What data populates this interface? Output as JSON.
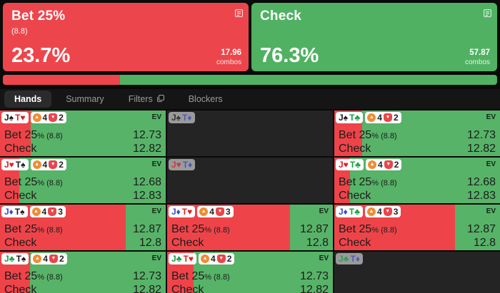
{
  "strategy_cards": [
    {
      "label": "Bet 25%",
      "sublabel": "(8.8)",
      "frequency": "23.7%",
      "combos": "17.96",
      "combos_label": "combos"
    },
    {
      "label": "Check",
      "sublabel": "",
      "frequency": "76.3%",
      "combos": "57.87",
      "combos_label": "combos"
    }
  ],
  "frequency_bar": {
    "bet_pct": 23.7,
    "check_pct": 76.3
  },
  "tabs": {
    "items": [
      {
        "label": "Hands",
        "active": true
      },
      {
        "label": "Summary",
        "active": false
      },
      {
        "label": "Filters",
        "active": false,
        "icon": "copy-icon"
      },
      {
        "label": "Blockers",
        "active": false
      }
    ]
  },
  "colors": {
    "bet_red": "#ec464c",
    "check_green": "#50b162",
    "cell_green": "#57b368",
    "cell_red": "#ee4449",
    "empty_cell": "#242424",
    "shield_orange": "#ef8d35",
    "shield_red": "#e9454b",
    "suit_spade": "#1a1a1a",
    "suit_heart": "#d8232b",
    "suit_diamond": "#3b4bc8",
    "suit_club": "#1b9e45"
  },
  "grid": {
    "ev_header": "EV",
    "cells": [
      {
        "cards": [
          {
            "rank": "J",
            "suit": "spade"
          },
          {
            "rank": "T",
            "suit": "heart"
          }
        ],
        "shields": [
          {
            "color": "orange",
            "value": "4"
          },
          {
            "color": "red",
            "value": "2"
          }
        ],
        "actions": [
          {
            "name": "Bet 25",
            "suffix": "% (8.8)",
            "ev": "12.73"
          },
          {
            "name": "Check",
            "suffix": "",
            "ev": "12.82"
          }
        ],
        "bet_freq_pct": 18.5,
        "empty": false
      },
      {
        "cards": [
          {
            "rank": "J",
            "suit": "spade"
          },
          {
            "rank": "T",
            "suit": "diamond"
          }
        ],
        "shields": [],
        "actions": [],
        "bet_freq_pct": 0,
        "empty": true
      },
      {
        "cards": [
          {
            "rank": "J",
            "suit": "spade"
          },
          {
            "rank": "T",
            "suit": "club"
          }
        ],
        "shields": [
          {
            "color": "orange",
            "value": "4"
          },
          {
            "color": "red",
            "value": "2"
          }
        ],
        "actions": [
          {
            "name": "Bet 25",
            "suffix": "% (8.8)",
            "ev": "12.73"
          },
          {
            "name": "Check",
            "suffix": "",
            "ev": "12.82"
          }
        ],
        "bet_freq_pct": 17,
        "empty": false
      },
      {
        "cards": [
          {
            "rank": "J",
            "suit": "heart"
          },
          {
            "rank": "T",
            "suit": "spade"
          }
        ],
        "shields": [
          {
            "color": "orange",
            "value": "4"
          },
          {
            "color": "red",
            "value": "2"
          }
        ],
        "actions": [
          {
            "name": "Bet 25",
            "suffix": "% (8.8)",
            "ev": "12.68"
          },
          {
            "name": "Check",
            "suffix": "",
            "ev": "12.83"
          }
        ],
        "bet_freq_pct": 11.5,
        "empty": false
      },
      {
        "cards": [
          {
            "rank": "J",
            "suit": "heart"
          },
          {
            "rank": "T",
            "suit": "diamond"
          }
        ],
        "shields": [],
        "actions": [],
        "bet_freq_pct": 0,
        "empty": true
      },
      {
        "cards": [
          {
            "rank": "J",
            "suit": "heart"
          },
          {
            "rank": "T",
            "suit": "club"
          }
        ],
        "shields": [
          {
            "color": "orange",
            "value": "4"
          },
          {
            "color": "red",
            "value": "2"
          }
        ],
        "actions": [
          {
            "name": "Bet 25",
            "suffix": "% (8.8)",
            "ev": "12.68"
          },
          {
            "name": "Check",
            "suffix": "",
            "ev": "12.83"
          }
        ],
        "bet_freq_pct": 9.5,
        "empty": false
      },
      {
        "cards": [
          {
            "rank": "J",
            "suit": "diamond"
          },
          {
            "rank": "T",
            "suit": "spade"
          }
        ],
        "shields": [
          {
            "color": "orange",
            "value": "4"
          },
          {
            "color": "red",
            "value": "3"
          }
        ],
        "actions": [
          {
            "name": "Bet 25",
            "suffix": "% (8.8)",
            "ev": "12.87"
          },
          {
            "name": "Check",
            "suffix": "",
            "ev": "12.8"
          }
        ],
        "bet_freq_pct": 76,
        "empty": false
      },
      {
        "cards": [
          {
            "rank": "J",
            "suit": "diamond"
          },
          {
            "rank": "T",
            "suit": "heart"
          }
        ],
        "shields": [
          {
            "color": "orange",
            "value": "4"
          },
          {
            "color": "red",
            "value": "3"
          }
        ],
        "actions": [
          {
            "name": "Bet 25",
            "suffix": "% (8.8)",
            "ev": "12.87"
          },
          {
            "name": "Check",
            "suffix": "",
            "ev": "12.8"
          }
        ],
        "bet_freq_pct": 74,
        "empty": false
      },
      {
        "cards": [
          {
            "rank": "J",
            "suit": "diamond"
          },
          {
            "rank": "T",
            "suit": "club"
          }
        ],
        "shields": [
          {
            "color": "orange",
            "value": "4"
          },
          {
            "color": "red",
            "value": "3"
          }
        ],
        "actions": [
          {
            "name": "Bet 25",
            "suffix": "% (8.8)",
            "ev": "12.87"
          },
          {
            "name": "Check",
            "suffix": "",
            "ev": "12.8"
          }
        ],
        "bet_freq_pct": 73,
        "empty": false
      },
      {
        "cards": [
          {
            "rank": "J",
            "suit": "club"
          },
          {
            "rank": "T",
            "suit": "spade"
          }
        ],
        "shields": [
          {
            "color": "orange",
            "value": "4"
          },
          {
            "color": "red",
            "value": "2"
          }
        ],
        "actions": [
          {
            "name": "Bet 25",
            "suffix": "% (8.8)",
            "ev": "12.73"
          },
          {
            "name": "Check",
            "suffix": "",
            "ev": "12.82"
          }
        ],
        "bet_freq_pct": 18,
        "empty": false
      },
      {
        "cards": [
          {
            "rank": "J",
            "suit": "club"
          },
          {
            "rank": "T",
            "suit": "heart"
          }
        ],
        "shields": [
          {
            "color": "orange",
            "value": "4"
          },
          {
            "color": "red",
            "value": "2"
          }
        ],
        "actions": [
          {
            "name": "Bet 25",
            "suffix": "% (8.8)",
            "ev": "12.73"
          },
          {
            "name": "Check",
            "suffix": "",
            "ev": "12.82"
          }
        ],
        "bet_freq_pct": 16,
        "empty": false
      },
      {
        "cards": [
          {
            "rank": "J",
            "suit": "club"
          },
          {
            "rank": "T",
            "suit": "diamond"
          }
        ],
        "shields": [],
        "actions": [],
        "bet_freq_pct": 0,
        "empty": true
      }
    ]
  }
}
